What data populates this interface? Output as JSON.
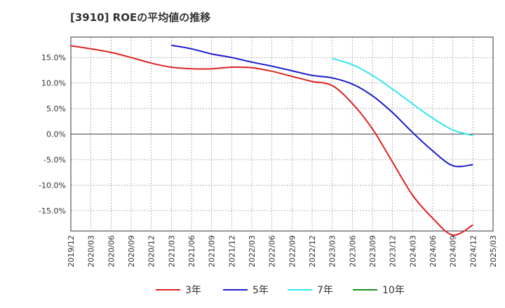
{
  "chart_data": {
    "type": "line",
    "title": "[3910]  ROEの平均値の推移",
    "xlabel": "",
    "ylabel": "",
    "x": [
      "2019/12",
      "2020/03",
      "2020/06",
      "2020/09",
      "2020/12",
      "2021/03",
      "2021/06",
      "2021/09",
      "2021/12",
      "2022/03",
      "2022/06",
      "2022/09",
      "2022/12",
      "2023/03",
      "2023/06",
      "2023/09",
      "2023/12",
      "2024/03",
      "2024/06",
      "2024/09",
      "2024/12",
      "2025/03"
    ],
    "ylim": [
      -19,
      19
    ],
    "yticks": [
      15,
      10,
      5,
      0,
      -5,
      -10,
      -15
    ],
    "ytick_labels": [
      "15.0%",
      "10.0%",
      "5.0%",
      "0.0%",
      "-5.0%",
      "-10.0%",
      "-15.0%"
    ],
    "grid": true,
    "legend_position": "bottom",
    "series": [
      {
        "name": "3年",
        "color": "#dd2222",
        "values": [
          17.3,
          16.7,
          16.0,
          15.0,
          13.9,
          13.1,
          12.8,
          12.8,
          13.1,
          13.0,
          12.3,
          11.3,
          10.3,
          9.5,
          6.0,
          1.0,
          -5.5,
          -12.0,
          -16.5,
          -19.8,
          -17.8,
          null
        ]
      },
      {
        "name": "5年",
        "color": "#1a1acc",
        "values": [
          null,
          null,
          null,
          null,
          null,
          17.4,
          16.7,
          15.7,
          15.0,
          14.1,
          13.3,
          12.4,
          11.5,
          11.0,
          9.8,
          7.5,
          4.2,
          0.3,
          -3.3,
          -6.2,
          -6.0,
          null
        ]
      },
      {
        "name": "7年",
        "color": "#33e5f0",
        "values": [
          null,
          null,
          null,
          null,
          null,
          null,
          null,
          null,
          null,
          null,
          null,
          null,
          null,
          14.8,
          13.6,
          11.5,
          8.8,
          5.9,
          3.1,
          0.8,
          -0.3,
          null
        ]
      },
      {
        "name": "10年",
        "color": "#1e8c1e",
        "values": [
          null,
          null,
          null,
          null,
          null,
          null,
          null,
          null,
          null,
          null,
          null,
          null,
          null,
          null,
          null,
          null,
          null,
          null,
          null,
          null,
          null,
          null
        ]
      }
    ]
  }
}
